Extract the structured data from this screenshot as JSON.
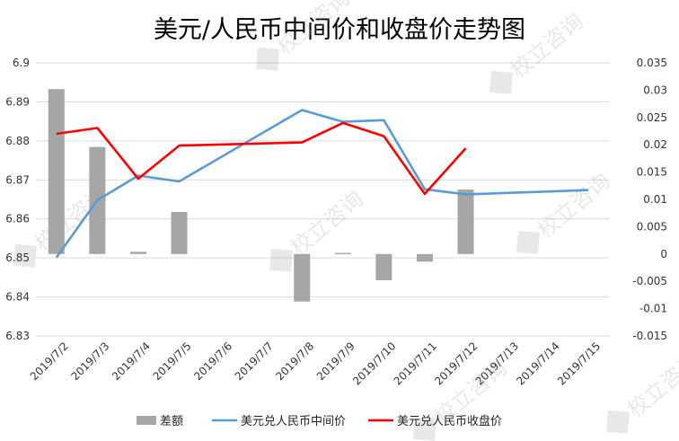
{
  "chart_data": {
    "type": "bar+line",
    "title": "美元/人民币中间价和收盘价走势图",
    "categories": [
      "2019/7/2",
      "2019/7/3",
      "2019/7/4",
      "2019/7/5",
      "2019/7/6",
      "2019/7/7",
      "2019/7/8",
      "2019/7/9",
      "2019/7/10",
      "2019/7/11",
      "2019/7/12",
      "2019/7/13",
      "2019/7/14",
      "2019/7/15"
    ],
    "y_left": {
      "min": 6.83,
      "max": 6.9,
      "ticks": [
        "6.9",
        "6.89",
        "6.88",
        "6.87",
        "6.86",
        "6.85",
        "6.84",
        "6.83"
      ],
      "tick_values": [
        6.9,
        6.89,
        6.88,
        6.87,
        6.86,
        6.85,
        6.84,
        6.83
      ]
    },
    "y_right": {
      "min": -0.015,
      "max": 0.035,
      "ticks": [
        "0.035",
        "0.03",
        "0.025",
        "0.02",
        "0.015",
        "0.01",
        "0.005",
        "0",
        "-0.005",
        "-0.01",
        "-0.015"
      ],
      "tick_values": [
        0.035,
        0.03,
        0.025,
        0.02,
        0.015,
        0.01,
        0.005,
        0,
        -0.005,
        -0.01,
        -0.015
      ]
    },
    "gridlines": true,
    "legend_position": "bottom",
    "series": [
      {
        "name": "差额",
        "kind": "bar",
        "axis": "right",
        "color": "#a6a6a6",
        "values": [
          0.0302,
          0.0196,
          0.0004,
          0.0077,
          null,
          null,
          -0.0087,
          0.0002,
          -0.0048,
          -0.0014,
          0.0118,
          null,
          null,
          null
        ]
      },
      {
        "name": "美元兑人民币中间价",
        "kind": "line",
        "axis": "left",
        "color": "#5b9bd5",
        "values": [
          6.8501,
          6.8648,
          6.8711,
          6.8696,
          null,
          null,
          6.8879,
          6.8849,
          6.8853,
          6.8676,
          6.8663,
          null,
          null,
          6.8674
        ]
      },
      {
        "name": "美元兑人民币收盘价",
        "kind": "line",
        "axis": "left",
        "color": "#ff0000",
        "values": [
          6.8818,
          6.8833,
          6.8703,
          6.8788,
          null,
          null,
          6.8796,
          6.8846,
          6.8812,
          6.8664,
          6.8781,
          null,
          null,
          null
        ]
      }
    ]
  },
  "watermark": "校立咨询"
}
